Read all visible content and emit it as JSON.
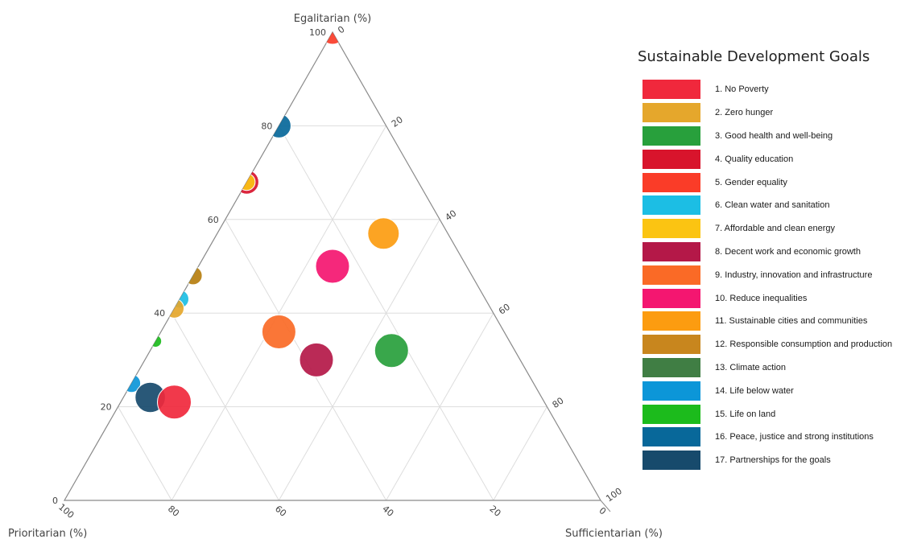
{
  "chart_data": {
    "type": "ternary-scatter",
    "axes": {
      "a": {
        "label": "Egalitarian (%)",
        "corner": "top"
      },
      "b": {
        "label": "Prioritarian (%)",
        "corner": "bottom-left"
      },
      "c": {
        "label": "Sufficientarian (%)",
        "corner": "bottom-right"
      }
    },
    "grid": true,
    "range": [
      0,
      100
    ],
    "a_ticks": [
      "0",
      "20",
      "40",
      "60",
      "80",
      "100"
    ],
    "b_ticks": [
      "100",
      "80",
      "60",
      "40",
      "20",
      "0"
    ],
    "c_ticks": [
      "0",
      "20",
      "40",
      "60",
      "80",
      "100"
    ],
    "legend": {
      "title": "Sustainable Development Goals",
      "placement": "right",
      "items": [
        {
          "label": "1. No Poverty",
          "color": "#f0283c"
        },
        {
          "label": "2. Zero hunger",
          "color": "#e5a72c"
        },
        {
          "label": "3. Good health and well-being",
          "color": "#28a03c"
        },
        {
          "label": "4. Quality education",
          "color": "#d8142c"
        },
        {
          "label": "5. Gender equality",
          "color": "#fa3c28"
        },
        {
          "label": "6. Clean water and sanitation",
          "color": "#1cbee4"
        },
        {
          "label": "7. Affordable and clean energy",
          "color": "#fbc412"
        },
        {
          "label": "8. Decent work and economic growth",
          "color": "#b41848"
        },
        {
          "label": "9. Industry, innovation and infrastructure",
          "color": "#fa6a26"
        },
        {
          "label": "10. Reduce inequalities",
          "color": "#f41670"
        },
        {
          "label": "11. Sustainable cities and communities",
          "color": "#fc9c10"
        },
        {
          "label": "12. Responsible consumption and production",
          "color": "#c8861e"
        },
        {
          "label": "13. Climate action",
          "color": "#407e44"
        },
        {
          "label": "14. Life below water",
          "color": "#0c96d8"
        },
        {
          "label": "15. Life on land",
          "color": "#1cbb1c"
        },
        {
          "label": "16. Peace, justice and strong institutions",
          "color": "#08689a"
        },
        {
          "label": "17. Partnerships for the goals",
          "color": "#174a6c"
        }
      ]
    },
    "points": [
      {
        "sdg": 5,
        "egalitarian": 100,
        "prioritarian": 0,
        "sufficientarian": 0,
        "size": 2
      },
      {
        "sdg": 16,
        "egalitarian": 80,
        "prioritarian": 20,
        "sufficientarian": 0,
        "size": 2
      },
      {
        "sdg": 4,
        "egalitarian": 68,
        "prioritarian": 32,
        "sufficientarian": 0,
        "size": 2
      },
      {
        "sdg": 7,
        "egalitarian": 68,
        "prioritarian": 32,
        "sufficientarian": 0,
        "size": 1.4
      },
      {
        "sdg": 3,
        "egalitarian": 48,
        "prioritarian": 52,
        "sufficientarian": 0,
        "size": 1.6
      },
      {
        "sdg": 12,
        "egalitarian": 48,
        "prioritarian": 52,
        "sufficientarian": 0,
        "size": 1.5
      },
      {
        "sdg": 6,
        "egalitarian": 43,
        "prioritarian": 57,
        "sufficientarian": 0,
        "size": 1.5
      },
      {
        "sdg": 2,
        "egalitarian": 41,
        "prioritarian": 59,
        "sufficientarian": 0,
        "size": 1.6
      },
      {
        "sdg": 15,
        "egalitarian": 34,
        "prioritarian": 66,
        "sufficientarian": 0,
        "size": 1
      },
      {
        "sdg": 14,
        "egalitarian": 25,
        "prioritarian": 75,
        "sufficientarian": 0,
        "size": 1.5
      },
      {
        "sdg": 17,
        "egalitarian": 22,
        "prioritarian": 73,
        "sufficientarian": 5,
        "size": 2.5
      },
      {
        "sdg": 1,
        "egalitarian": 21,
        "prioritarian": 69,
        "sufficientarian": 10,
        "size": 2.8
      },
      {
        "sdg": 11,
        "egalitarian": 57,
        "prioritarian": 12,
        "sufficientarian": 31,
        "size": 2.6
      },
      {
        "sdg": 10,
        "egalitarian": 50,
        "prioritarian": 25,
        "sufficientarian": 25,
        "size": 2.8
      },
      {
        "sdg": 9,
        "egalitarian": 36,
        "prioritarian": 42,
        "sufficientarian": 22,
        "size": 2.8
      },
      {
        "sdg": 8,
        "egalitarian": 30,
        "prioritarian": 38,
        "sufficientarian": 32,
        "size": 2.8
      },
      {
        "sdg": 3,
        "egalitarian": 32,
        "prioritarian": 23,
        "sufficientarian": 45,
        "size": 2.8
      }
    ]
  }
}
